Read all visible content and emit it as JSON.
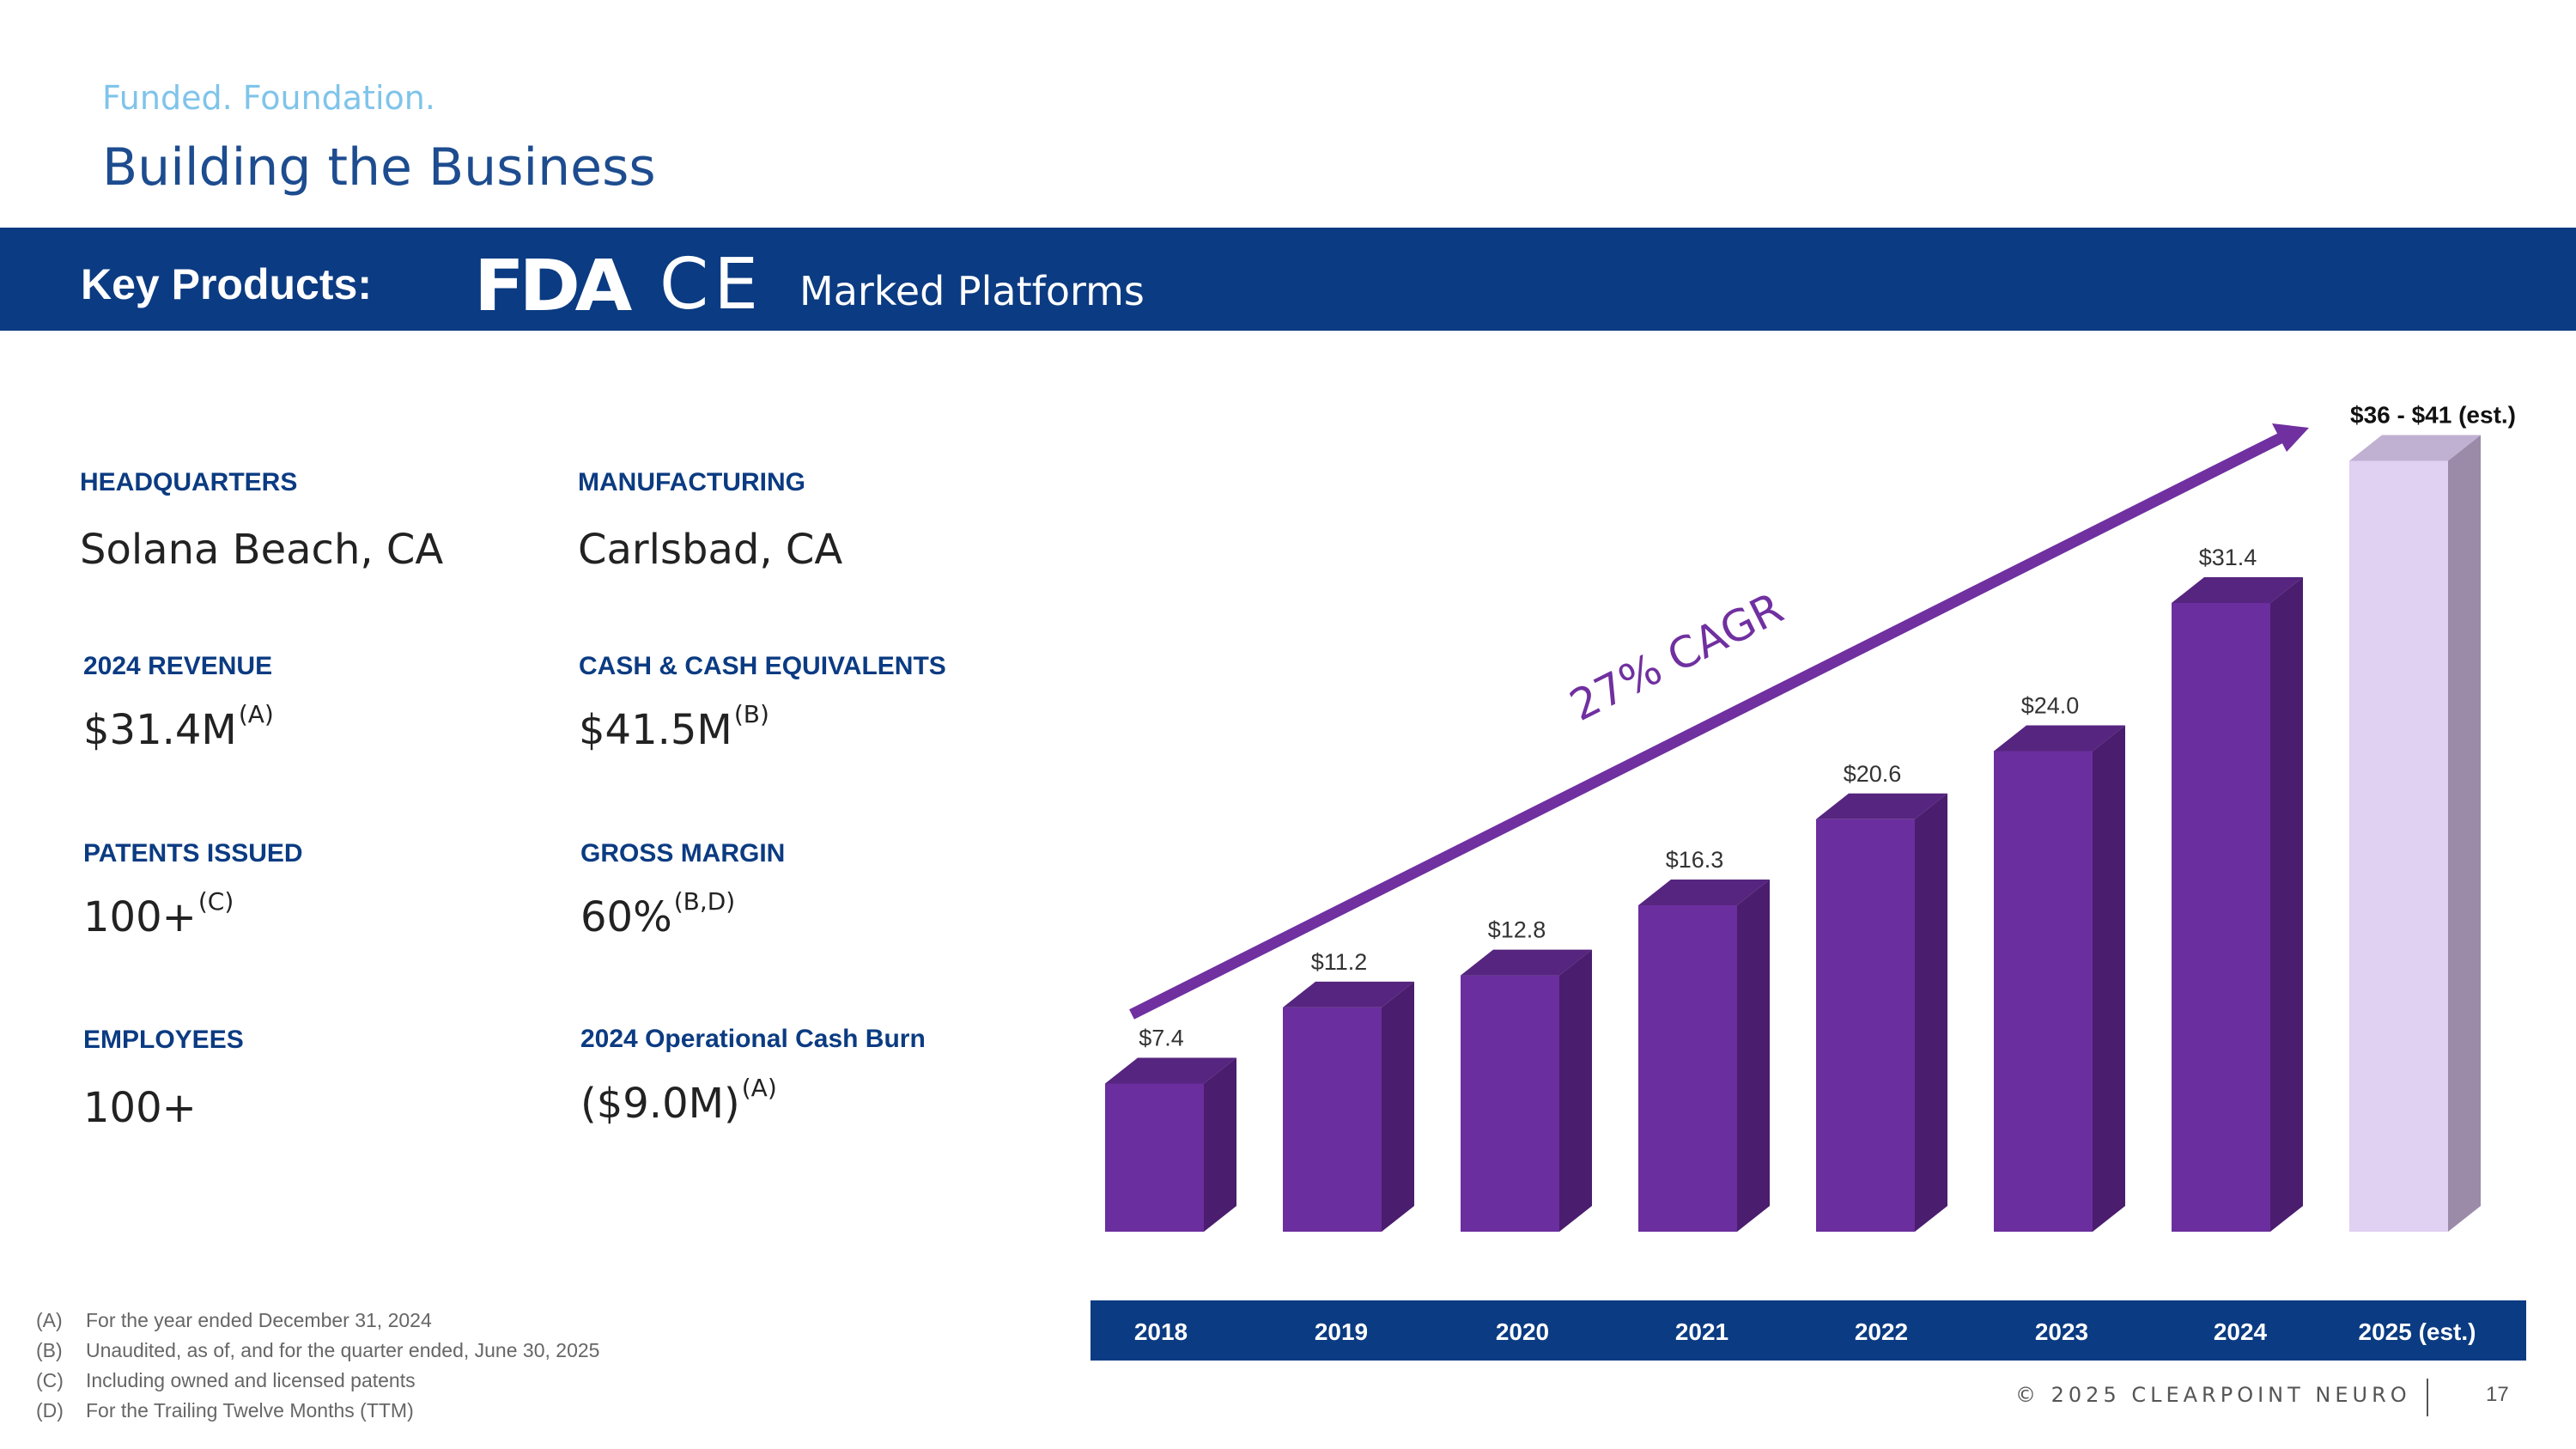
{
  "header": {
    "tagline": "Funded. Foundation.",
    "title": "Building the Business"
  },
  "band": {
    "label": "Key Products:",
    "fda_logo": "FDA",
    "ce_logo": "CE",
    "text": "Marked Platforms"
  },
  "stats": {
    "headquarters": {
      "label": "HEADQUARTERS",
      "value": "Solana Beach, CA"
    },
    "manufacturing": {
      "label": "MANUFACTURING",
      "value": "Carlsbad, CA"
    },
    "revenue": {
      "label": "2024 REVENUE",
      "value": "$31.4M",
      "note": "(A)"
    },
    "cash": {
      "label": "CASH & CASH EQUIVALENTS",
      "value": "$41.5M",
      "note": "(B)"
    },
    "patents": {
      "label": "PATENTS ISSUED",
      "value": "100+",
      "note": "(C)"
    },
    "gross_margin": {
      "label": "GROSS MARGIN",
      "value": "60%",
      "note": "(B,D)"
    },
    "employees": {
      "label": "EMPLOYEES",
      "value": "100+"
    },
    "cash_burn": {
      "label": "2024 Operational Cash Burn",
      "value": "($9.0M)",
      "note": "(A)"
    }
  },
  "footnotes": [
    {
      "key": "(A)",
      "text": "For the year ended December 31, 2024"
    },
    {
      "key": "(B)",
      "text": "Unaudited, as of, and for the quarter ended, June 30, 2025"
    },
    {
      "key": "(C)",
      "text": "Including owned and licensed patents"
    },
    {
      "key": "(D)",
      "text": "For the Trailing Twelve Months (TTM)"
    }
  ],
  "footer": {
    "copyright": "© 2025 CLEARPOINT NEURO",
    "page": "17"
  },
  "chart_data": {
    "type": "bar",
    "title": "",
    "categories": [
      "2018",
      "2019",
      "2020",
      "2021",
      "2022",
      "2023",
      "2024",
      "2025 (est.)"
    ],
    "values": [
      7.4,
      11.2,
      12.8,
      16.3,
      20.6,
      24.0,
      31.4,
      38.5
    ],
    "data_labels": [
      "$7.4",
      "$11.2",
      "$12.8",
      "$16.3",
      "$20.6",
      "$24.0",
      "$31.4",
      "$36 - $41 (est.)"
    ],
    "estimate_range": [
      36,
      41
    ],
    "annotation": "27% CAGR",
    "ylim": [
      0,
      41
    ],
    "colors": {
      "bar_front": "#6b2e9e",
      "bar_side": "#4a1d6e",
      "bar_top": "#56257f",
      "est_front": "#e0d0f2",
      "est_side": "#9b8aa8",
      "est_top": "#c0b0d2",
      "arrow": "#7030a0",
      "axis_band": "#0b3b82"
    }
  }
}
